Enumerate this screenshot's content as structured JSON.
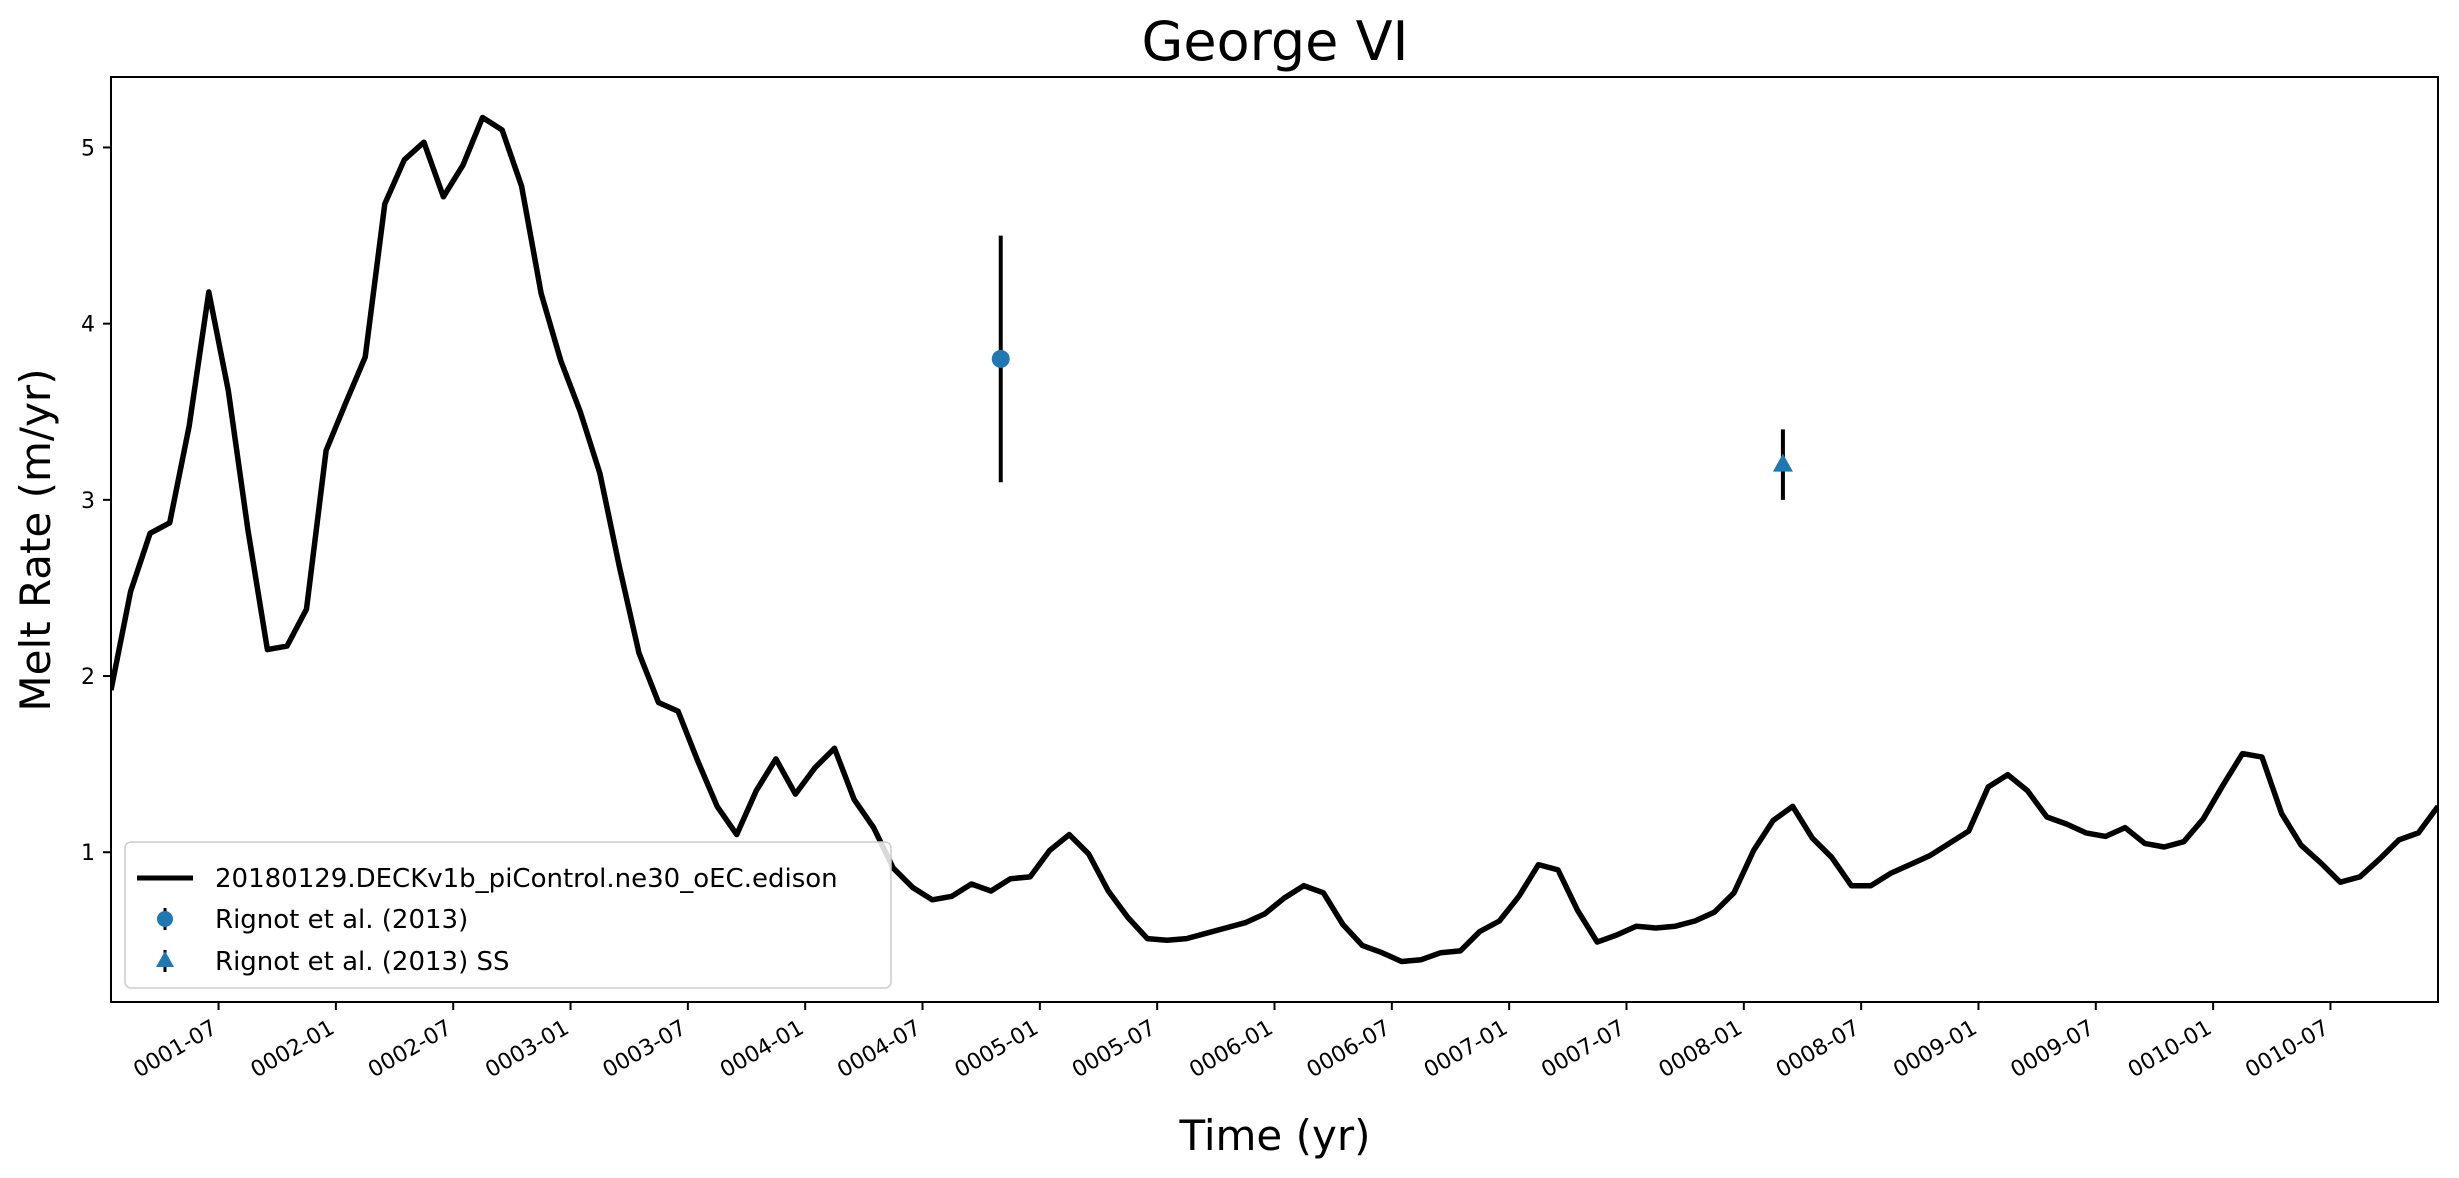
{
  "chart_data": {
    "type": "line",
    "title": "George VI",
    "xlabel": "Time (yr)",
    "ylabel": "Melt Rate (m/yr)",
    "x_tick_labels": [
      "0001-07",
      "0002-01",
      "0002-07",
      "0003-01",
      "0003-07",
      "0004-01",
      "0004-07",
      "0005-01",
      "0005-07",
      "0006-01",
      "0006-07",
      "0007-01",
      "0007-07",
      "0008-01",
      "0008-07",
      "0009-01",
      "0009-07",
      "0010-01",
      "0010-07"
    ],
    "y_ticks": [
      1,
      2,
      3,
      4,
      5
    ],
    "xlim_months": [
      0.5,
      119.5
    ],
    "ylim": [
      0.15,
      5.4
    ],
    "grid": false,
    "legend_position": "lower-left",
    "series": [
      {
        "name": "20180129.DECKv1b_piControl.ne30_oEC.edison",
        "type": "line",
        "color": "#000000",
        "x_months": [
          0.5,
          1.5,
          2.5,
          3.5,
          4.5,
          5.5,
          6.5,
          7.5,
          8.5,
          9.5,
          10.5,
          11.5,
          12.5,
          13.5,
          14.5,
          15.5,
          16.5,
          17.5,
          18.5,
          19.5,
          20.5,
          21.5,
          22.5,
          23.5,
          24.5,
          25.5,
          26.5,
          27.5,
          28.5,
          29.5,
          30.5,
          31.5,
          32.5,
          33.5,
          34.5,
          35.5,
          36.5,
          37.5,
          38.5,
          39.5,
          40.5,
          41.5,
          42.5,
          43.5,
          44.5,
          45.5,
          46.5,
          47.5,
          48.5,
          49.5,
          50.5,
          51.5,
          52.5,
          53.5,
          54.5,
          55.5,
          56.5,
          57.5,
          58.5,
          59.5,
          60.5,
          61.5,
          62.5,
          63.5,
          64.5,
          65.5,
          66.5,
          67.5,
          68.5,
          69.5,
          70.5,
          71.5,
          72.5,
          73.5,
          74.5,
          75.5,
          76.5,
          77.5,
          78.5,
          79.5,
          80.5,
          81.5,
          82.5,
          83.5,
          84.5,
          85.5,
          86.5,
          87.5,
          88.5,
          89.5,
          90.5,
          91.5,
          92.5,
          93.5,
          94.5,
          95.5,
          96.5,
          97.5,
          98.5,
          99.5,
          100.5,
          101.5,
          102.5,
          103.5,
          104.5,
          105.5,
          106.5,
          107.5,
          108.5,
          109.5,
          110.5,
          111.5,
          112.5,
          113.5,
          114.5,
          115.5,
          116.5,
          117.5,
          118.5,
          119.5
        ],
        "values": [
          1.92,
          2.48,
          2.81,
          2.87,
          3.42,
          4.18,
          3.62,
          2.83,
          2.15,
          2.17,
          2.38,
          3.28,
          3.55,
          3.81,
          4.68,
          4.93,
          5.03,
          4.72,
          4.9,
          5.17,
          5.1,
          4.78,
          4.17,
          3.79,
          3.5,
          3.15,
          2.62,
          2.13,
          1.85,
          1.8,
          1.52,
          1.26,
          1.1,
          1.35,
          1.53,
          1.33,
          1.48,
          1.59,
          1.3,
          1.14,
          0.91,
          0.8,
          0.73,
          0.75,
          0.82,
          0.78,
          0.85,
          0.86,
          1.01,
          1.1,
          0.99,
          0.78,
          0.63,
          0.51,
          0.5,
          0.51,
          0.54,
          0.57,
          0.6,
          0.65,
          0.74,
          0.81,
          0.77,
          0.59,
          0.47,
          0.43,
          0.38,
          0.39,
          0.43,
          0.44,
          0.55,
          0.61,
          0.75,
          0.93,
          0.9,
          0.67,
          0.49,
          0.53,
          0.58,
          0.57,
          0.58,
          0.61,
          0.66,
          0.77,
          1.01,
          1.18,
          1.26,
          1.08,
          0.97,
          0.81,
          0.81,
          0.88,
          0.93,
          0.98,
          1.05,
          1.12,
          1.37,
          1.44,
          1.35,
          1.2,
          1.16,
          1.11,
          1.09,
          1.14,
          1.05,
          1.03,
          1.06,
          1.19,
          1.38,
          1.56,
          1.54,
          1.22,
          1.04,
          0.94,
          0.83,
          0.86,
          0.96,
          1.07,
          1.11,
          1.26
        ]
      },
      {
        "name": "Rignot et al. (2013)",
        "type": "errorbar",
        "marker": "circle",
        "color": "#1f77b4",
        "x_months": [
          46
        ],
        "values": [
          3.8
        ],
        "yerr": [
          0.7
        ]
      },
      {
        "name": "Rignot et al. (2013) SS",
        "type": "errorbar",
        "marker": "triangle",
        "color": "#1f77b4",
        "x_months": [
          86
        ],
        "values": [
          3.2
        ],
        "yerr": [
          0.2
        ]
      }
    ]
  }
}
